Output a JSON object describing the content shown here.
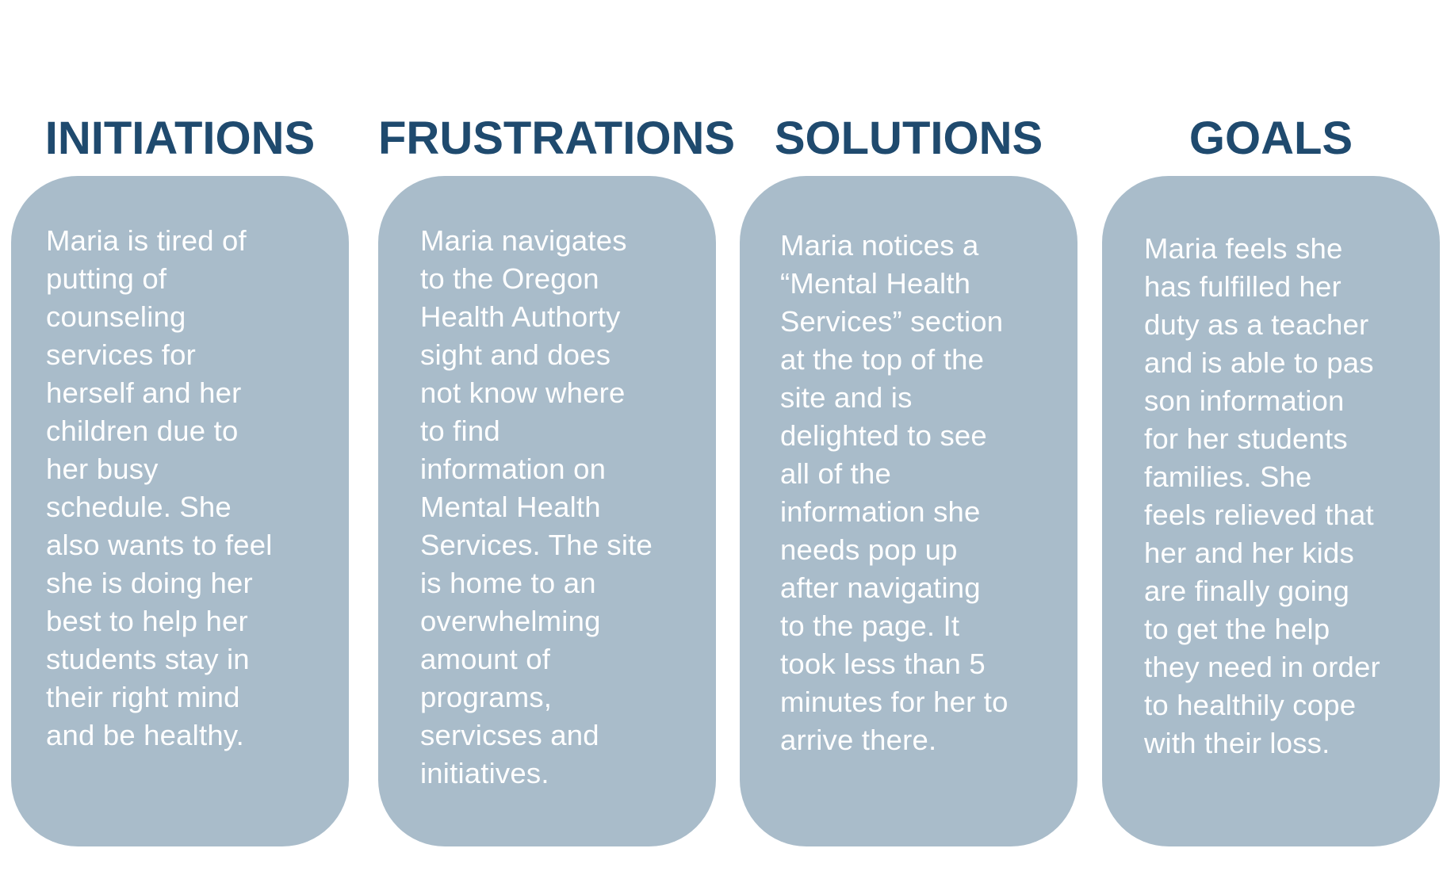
{
  "columns": [
    {
      "heading": "INITIATIONS",
      "text": "Maria is tired of\nputting of\ncounseling\nservices for\nherself and her\nchildren due to\nher busy\nschedule. She\nalso wants to feel\nshe is doing her\nbest to help her\nstudents stay in\ntheir right mind\nand be healthy."
    },
    {
      "heading": "FRUSTRATIONS",
      "text": "Maria navigates\nto the Oregon\nHealth Authorty\nsight and does\nnot know where\nto find\ninformation on\nMental Health\nServices. The site\nis home to an\noverwhelming\namount of\nprograms,\nservicses and\ninitiatives."
    },
    {
      "heading": "SOLUTIONS",
      "text": "Maria notices a\n“Mental Health\nServices” section\nat the top of the\nsite and is\ndelighted to see\nall of the\ninformation she\nneeds pop up\nafter navigating\nto the page. It\ntook less than 5\nminutes for her to\narrive there."
    },
    {
      "heading": "GOALS",
      "text": "Maria feels she\nhas fulfilled her\nduty as a teacher\nand is able to pas\nson information\nfor her students\nfamilies. She\nfeels relieved that\nher and her kids\nare finally going\nto get the help\nthey need in order\nto healthily cope\nwith their loss."
    }
  ],
  "colors": {
    "heading": "#1f4a6e",
    "card_background": "#a9bcca",
    "card_text": "#ffffff",
    "page_background": "#ffffff"
  }
}
